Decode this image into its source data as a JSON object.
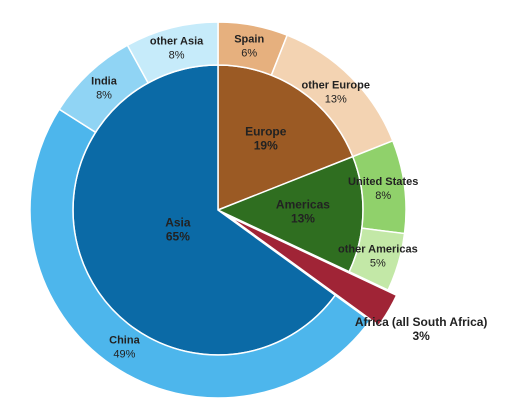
{
  "chart_data": {
    "type": "sunburst",
    "segments": [
      {
        "name": "Europe",
        "value": 19,
        "value_label": "19%",
        "color": "#9b5a24",
        "children": [
          {
            "name": "Spain",
            "value": 6,
            "value_label": "6%",
            "color": "#e6b07e"
          },
          {
            "name": "other Europe",
            "value": 13,
            "value_label": "13%",
            "color": "#f3d3b2"
          }
        ]
      },
      {
        "name": "Americas",
        "value": 13,
        "value_label": "13%",
        "color": "#2f6e20",
        "children": [
          {
            "name": "United States",
            "value": 8,
            "value_label": "8%",
            "color": "#90d16b"
          },
          {
            "name": "other Americas",
            "value": 5,
            "value_label": "5%",
            "color": "#c3e8a7"
          }
        ]
      },
      {
        "name": "Africa",
        "note": "(all South Africa)",
        "value": 3,
        "value_label": "3%",
        "color": "#a02436",
        "children": []
      },
      {
        "name": "Asia",
        "value": 65,
        "value_label": "65%",
        "color": "#0b6aa6",
        "children": [
          {
            "name": "China",
            "value": 49,
            "value_label": "49%",
            "color": "#4db6ec"
          },
          {
            "name": "India",
            "value": 8,
            "value_label": "8%",
            "color": "#90d4f4"
          },
          {
            "name": "other Asia",
            "value": 8,
            "value_label": "8%",
            "color": "#c6ebfa"
          }
        ]
      }
    ]
  }
}
